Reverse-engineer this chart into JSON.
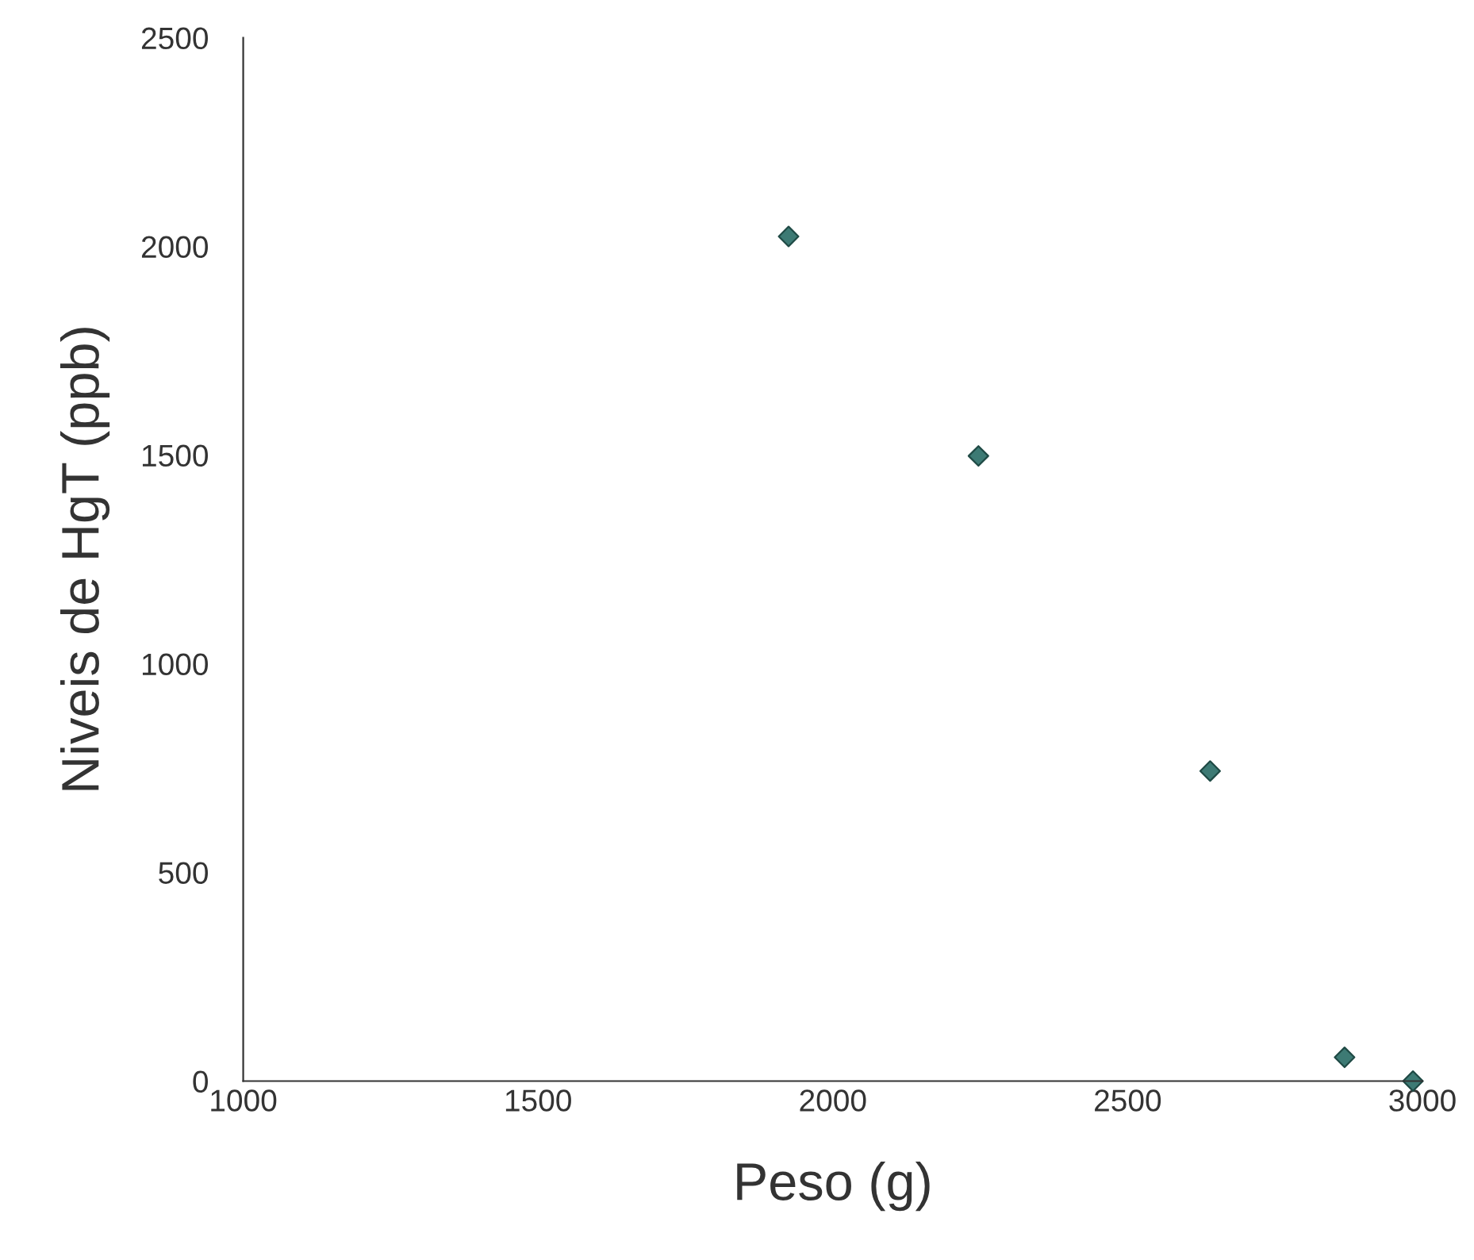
{
  "chart_data": {
    "type": "scatter",
    "xlabel": "Peso (g)",
    "ylabel": "Niveis de HgT (ppb)",
    "x": [
      1925,
      2247,
      2640,
      2868,
      2984
    ],
    "series": [
      {
        "color": "#3d7a74",
        "values": [
          2024,
          1498,
          743,
          57,
          0
        ]
      }
    ],
    "xlim": [
      1000,
      3000
    ],
    "ylim": [
      0,
      2500
    ],
    "xticks": [
      1000,
      1500,
      2000,
      2500,
      3000
    ],
    "yticks": [
      0,
      500,
      1000,
      1500,
      2000,
      2500
    ],
    "grid": false,
    "legend": false,
    "marker": "diamond"
  }
}
